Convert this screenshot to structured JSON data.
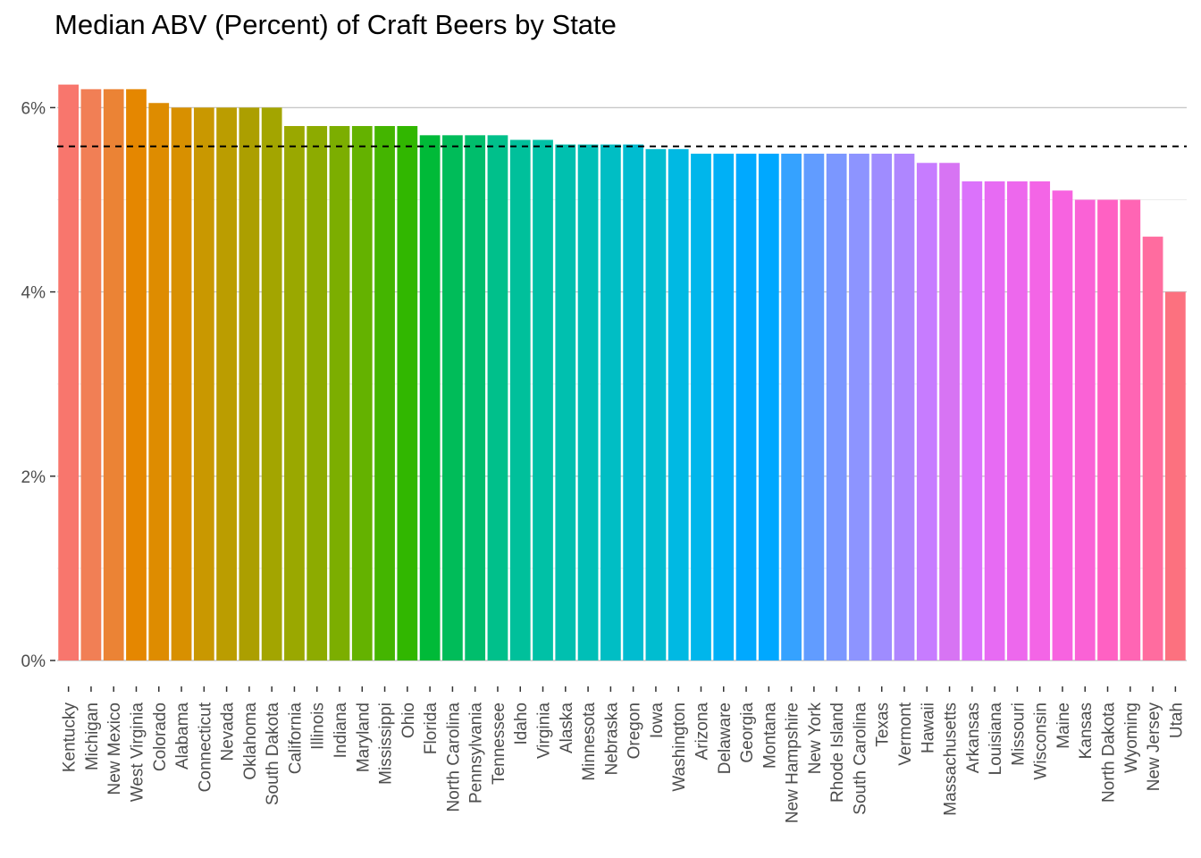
{
  "chart_data": {
    "type": "bar",
    "title": "Median ABV (Percent) of Craft Beers by State",
    "xlabel": "",
    "ylabel": "",
    "ylim": [
      0,
      6.3
    ],
    "y_ticks": [
      0,
      2,
      4,
      6
    ],
    "y_tick_labels": [
      "0%",
      "2%",
      "4%",
      "6%"
    ],
    "y_minor_ticks": [
      1,
      3,
      5
    ],
    "overall_median_line": 5.58,
    "categories": [
      "Kentucky",
      "Michigan",
      "New Mexico",
      "West Virginia",
      "Colorado",
      "Alabama",
      "Connecticut",
      "Nevada",
      "Oklahoma",
      "South Dakota",
      "California",
      "Illinois",
      "Indiana",
      "Maryland",
      "Mississippi",
      "Ohio",
      "Florida",
      "North Carolina",
      "Pennsylvania",
      "Tennessee",
      "Idaho",
      "Virginia",
      "Alaska",
      "Minnesota",
      "Nebraska",
      "Oregon",
      "Iowa",
      "Washington",
      "Arizona",
      "Delaware",
      "Georgia",
      "Montana",
      "New Hampshire",
      "New York",
      "Rhode Island",
      "South Carolina",
      "Texas",
      "Vermont",
      "Hawaii",
      "Massachusetts",
      "Arkansas",
      "Louisiana",
      "Missouri",
      "Wisconsin",
      "Maine",
      "Kansas",
      "North Dakota",
      "Wyoming",
      "New Jersey",
      "Utah"
    ],
    "values": [
      6.25,
      6.2,
      6.2,
      6.2,
      6.05,
      6.0,
      6.0,
      6.0,
      6.0,
      6.0,
      5.8,
      5.8,
      5.8,
      5.8,
      5.8,
      5.8,
      5.7,
      5.7,
      5.7,
      5.7,
      5.65,
      5.65,
      5.6,
      5.6,
      5.6,
      5.6,
      5.55,
      5.55,
      5.5,
      5.5,
      5.5,
      5.5,
      5.5,
      5.5,
      5.5,
      5.5,
      5.5,
      5.5,
      5.4,
      5.4,
      5.2,
      5.2,
      5.2,
      5.2,
      5.1,
      5.0,
      5.0,
      5.0,
      4.6,
      4.0
    ],
    "colors": [
      "#F8766D",
      "#F17F55",
      "#EB8335",
      "#E58700",
      "#DE8C00",
      "#D89000",
      "#C99800",
      "#BB9D00",
      "#AC9F00",
      "#A3A500",
      "#9AA800",
      "#8DAB00",
      "#7CAE00",
      "#64B200",
      "#44B500",
      "#31B700",
      "#00BA38",
      "#00BC59",
      "#00BE6C",
      "#00C08B",
      "#00C09B",
      "#00C1A6",
      "#00C0AF",
      "#00BFB7",
      "#00BEC4",
      "#00BCD0",
      "#00BDD0",
      "#00B9E3",
      "#00B6EB",
      "#00B0F6",
      "#00A9FF",
      "#00A8FF",
      "#35A2FF",
      "#619CFF",
      "#7B97FF",
      "#8D94FF",
      "#9F8CFF",
      "#AF86FF",
      "#C77CFF",
      "#D774F3",
      "#DB72FB",
      "#E76BF3",
      "#ED68ED",
      "#F365E6",
      "#F763E0",
      "#FA62D6",
      "#FF61C3",
      "#FF65B4",
      "#FF6C9F",
      "#FC717F"
    ],
    "grid": true,
    "legend": "none"
  }
}
